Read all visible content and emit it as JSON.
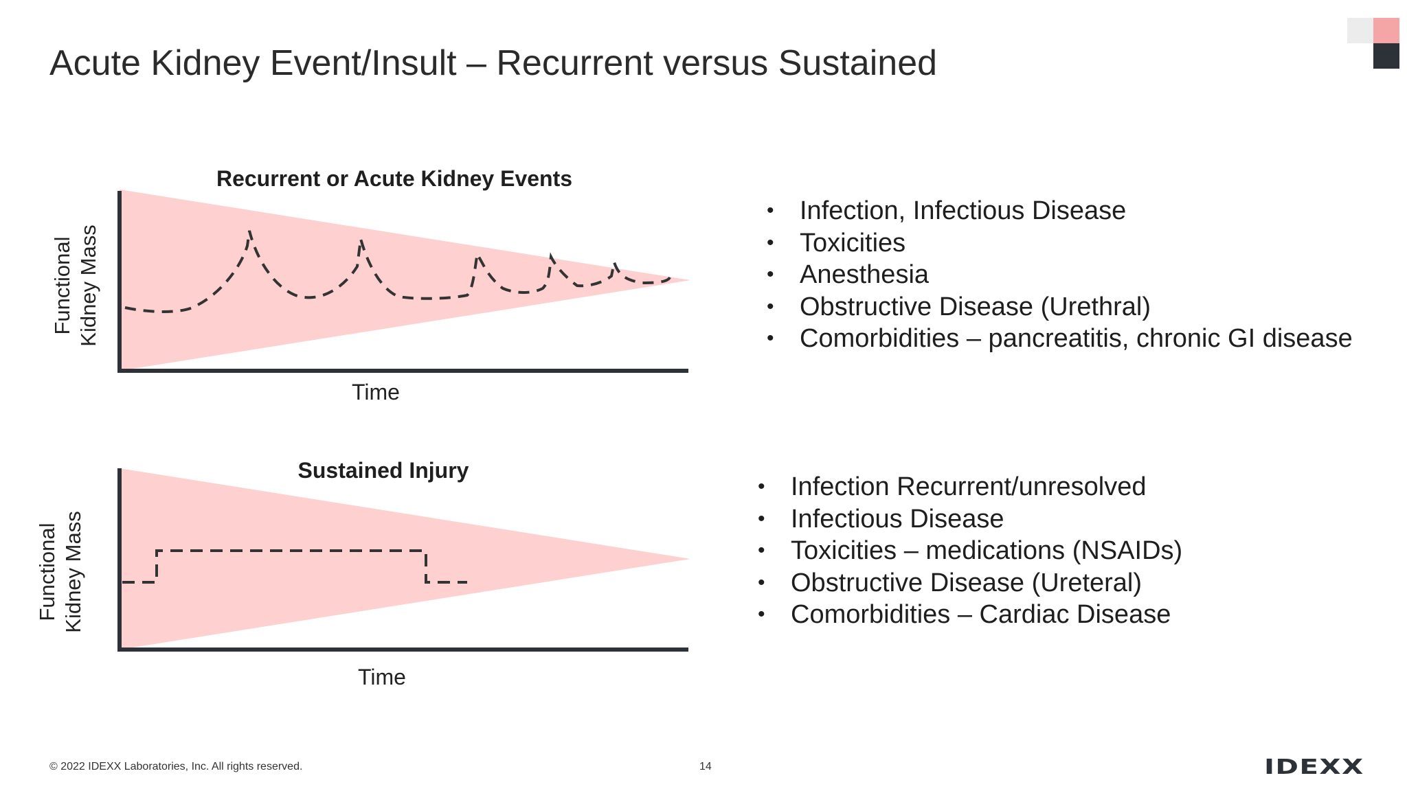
{
  "slide": {
    "title": "Acute Kidney Event/Insult – Recurrent versus Sustained",
    "page_number": "14",
    "copyright": "© 2022 IDEXX Laboratories, Inc. All rights reserved.",
    "logo_text": "IDEXX"
  },
  "colors": {
    "wedge_fill": "#ffd0d0",
    "axis": "#2d3138",
    "dash_line": "#333333"
  },
  "diagrams": {
    "recurrent": {
      "title": "Recurrent or Acute Kidney Events",
      "x_label": "Time",
      "y_label_line1": "Functional",
      "y_label_line2": "Kidney Mass",
      "bullets": [
        "Infection, Infectious Disease",
        "Toxicities",
        "Anesthesia",
        "Obstructive Disease (Urethral)",
        "Comorbidities – pancreatitis, chronic GI disease"
      ]
    },
    "sustained": {
      "title": "Sustained Injury",
      "x_label": "Time",
      "y_label_line1": "Functional",
      "y_label_line2": "Kidney Mass",
      "bullets": [
        "Infection Recurrent/unresolved",
        "Infectious Disease",
        "Toxicities – medications (NSAIDs)",
        "Obstructive Disease (Ureteral)",
        "Comorbidities – Cardiac Disease"
      ]
    }
  }
}
